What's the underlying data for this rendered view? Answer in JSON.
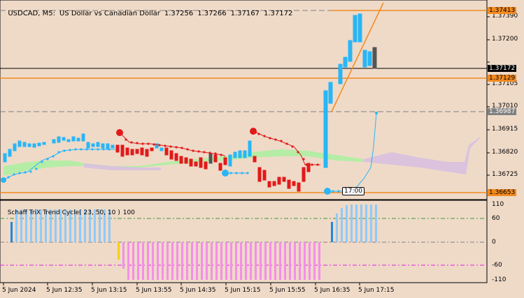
{
  "header": {
    "symbol": "USDCAD, M5:",
    "name": "US Dollar vs Canadian Dollar",
    "open": "1.37256",
    "high": "1.37266",
    "low": "1.37167",
    "close": "1.37172"
  },
  "indicator": {
    "name": "Schaff TriX Trend Cycle( 23, 50, 10 )",
    "value": "100"
  },
  "price_axis": [
    "1.37390",
    "1.37200",
    "1.37105",
    "1.37010",
    "1.36915",
    "1.36820",
    "1.36725"
  ],
  "price_tags": {
    "top_line": "1.37413",
    "current": "1.37172",
    "mid_line": "1.37129",
    "dash_level": "1.36987",
    "bottom_line": "1.36653"
  },
  "indicator_axis": [
    "110",
    "60",
    "0",
    "-60",
    "-110"
  ],
  "time_axis": [
    "5 Jun 2024",
    "5 Jun 12:35",
    "5 Jun 13:15",
    "5 Jun 13:55",
    "5 Jun 14:35",
    "5 Jun 15:15",
    "5 Jun 15:55",
    "5 Jun 16:35",
    "5 Jun 17:15"
  ],
  "time_marker": "17:00",
  "colors": {
    "background": "#efdac8",
    "bull_candle": "#29b6f6",
    "bear_candle": "#e11a1a",
    "orange_line": "#f28a1f",
    "cloud_green": "#aaf0a0",
    "cloud_violet": "#d8c0e0",
    "hist_blue": "#90caf9",
    "hist_pink": "#f48fe8"
  }
}
